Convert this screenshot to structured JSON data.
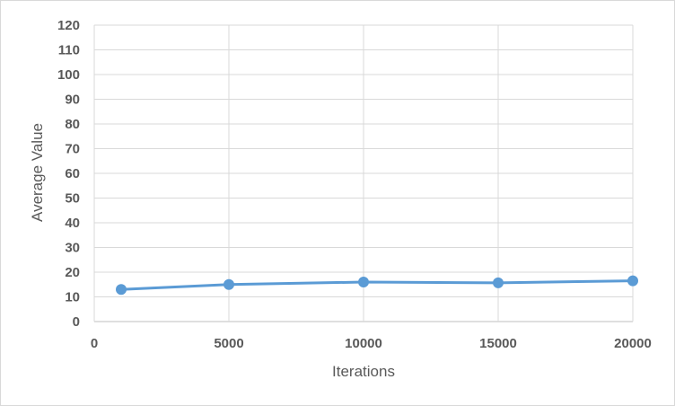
{
  "chart_data": {
    "type": "line",
    "title": "",
    "xlabel": "Iterations",
    "ylabel": "Average Value",
    "xlim": [
      0,
      20000
    ],
    "ylim": [
      0,
      120
    ],
    "x_ticks": [
      "0",
      "5000",
      "10000",
      "15000",
      "20000"
    ],
    "y_ticks": [
      "0",
      "10",
      "20",
      "30",
      "40",
      "50",
      "60",
      "70",
      "80",
      "90",
      "100",
      "110",
      "120"
    ],
    "grid": true,
    "legend": "none",
    "series": [
      {
        "x": [
          1000,
          5000,
          10000,
          15000,
          20000
        ],
        "y": [
          13,
          15,
          16,
          15.7,
          16.5
        ],
        "color": "#5b9bd5",
        "marker": "circle"
      }
    ]
  }
}
